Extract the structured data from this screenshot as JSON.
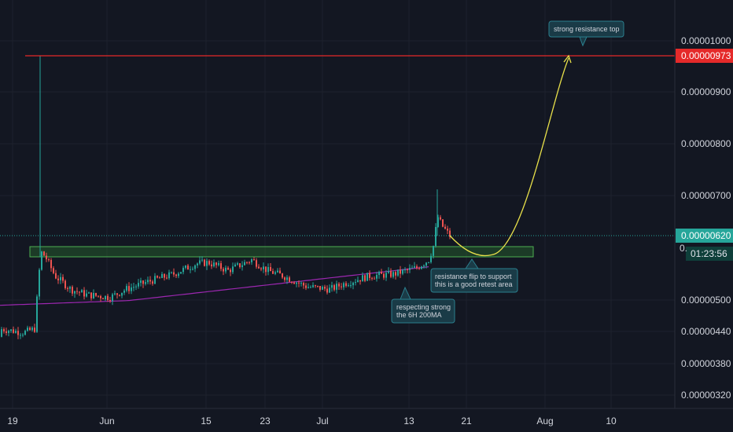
{
  "chart_data": {
    "type": "candlestick",
    "title": "",
    "xlabel": "",
    "ylabel": "",
    "x_ticks": [
      "19",
      "Jun",
      "15",
      "23",
      "Jul",
      "13",
      "21",
      "Aug",
      "10"
    ],
    "y_ticks": [
      "0.00001000",
      "0.00000900",
      "0.00000800",
      "0.00000700",
      "0.00000500",
      "0.00000440",
      "0.00000380",
      "0.00000320"
    ],
    "y_range": [
      2.9e-06,
      1.05e-05
    ],
    "grid": true,
    "price_labels": {
      "resistance_price": "0.00000973",
      "current_price": "0.00000620",
      "countdown": "01:23:56",
      "partial_label": "0."
    },
    "resistance_level": 9.73e-06,
    "current_price": 6.2e-06,
    "support_zone": {
      "low": 5.95e-06,
      "high": 6.05e-06
    },
    "candles": {
      "start": "May 19",
      "end": "Jul 18",
      "open": 4.3e-06,
      "close": 6.2e-06,
      "spike_high": 9.73e-06,
      "post_spike_high": 7.12e-06
    },
    "ma_200": {
      "name": "6H 200MA",
      "start": 5e-06,
      "end": 5.6e-06
    },
    "projection": {
      "from": 6.2e-06,
      "dip": 5.9e-06,
      "to": 9.73e-06
    },
    "annotations": [
      {
        "id": "resistance",
        "text": "strong resistance top"
      },
      {
        "id": "flip",
        "lines": [
          "resistance flip to support",
          "this is a good retest area"
        ]
      },
      {
        "id": "ma",
        "lines": [
          "respecting strong",
          "the 6H 200MA"
        ]
      }
    ],
    "colors": {
      "background": "#131722",
      "grid": "#1e222d",
      "up": "#26a69a",
      "down": "#ef5350",
      "resistance": "#e52a2a",
      "support_fill": "#2e7d32",
      "support_stroke": "#4caf50",
      "ma": "#9c27b0",
      "projection": "#e8e04a",
      "annotation_fill": "#1a3b47",
      "annotation_stroke": "#2b7f8e",
      "current_price_bg": "#26a69a"
    }
  }
}
